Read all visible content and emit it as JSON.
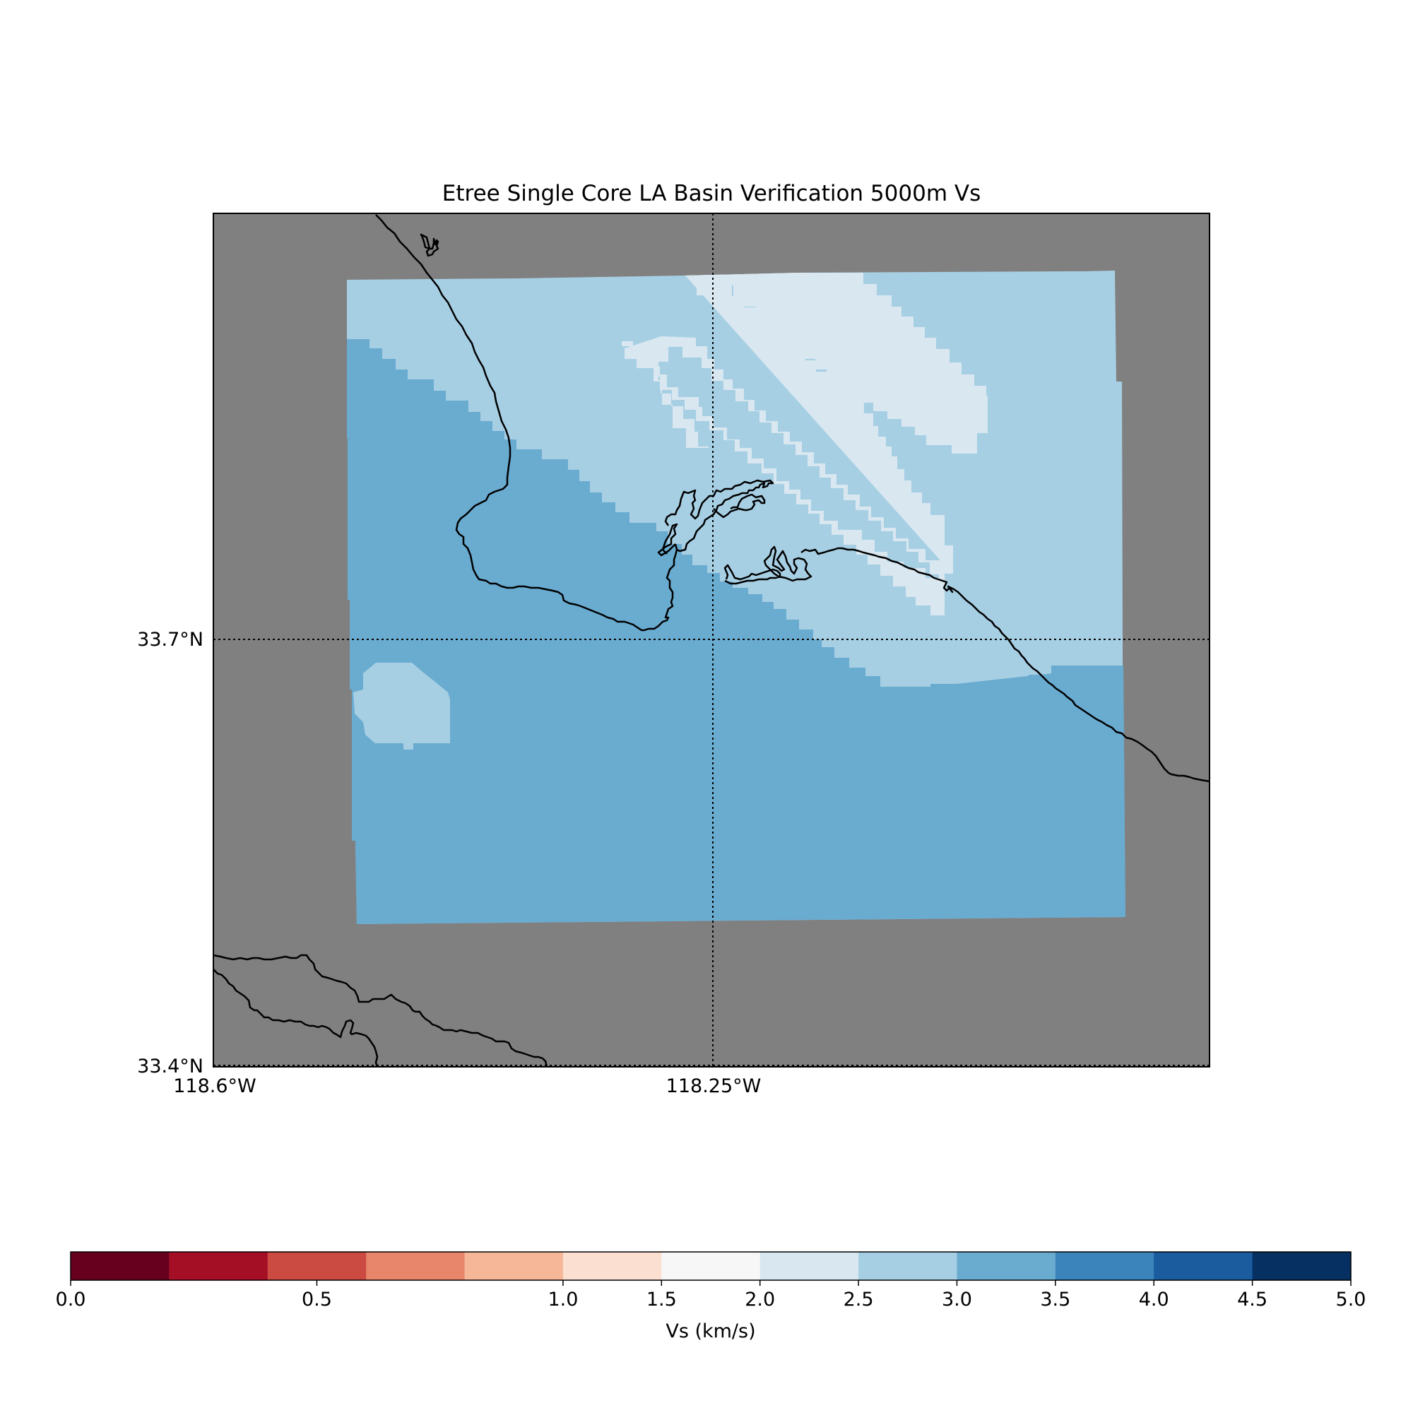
{
  "title": "Etree Single Core LA Basin Verification 5000m Vs",
  "map": {
    "background_color": "#808080",
    "coastline_color": "#000000",
    "lat_labels": [
      "33.7°N",
      "33.4°N"
    ],
    "lon_labels": [
      "118.6°W",
      "118.25°W"
    ],
    "gridlines": "dotted, 118.25°W and 33.7°N",
    "extent": {
      "lon": [
        -118.6,
        -117.9
      ],
      "lat": [
        33.4,
        34.0
      ]
    }
  },
  "chart_data": {
    "type": "heatmap",
    "title": "Etree Single Core LA Basin Verification 5000m Vs",
    "zones": [
      {
        "zone": "offshore south-west",
        "vs_range": [
          3.0,
          3.5
        ],
        "color": "#6aabd0"
      },
      {
        "zone": "north-west band",
        "vs_range": [
          2.5,
          3.0
        ],
        "color": "#a7cfe4"
      },
      {
        "zone": "central north-west trending band",
        "vs_range": [
          2.0,
          2.5
        ],
        "color": "#d8e7f0"
      },
      {
        "zone": "small offshore patch west",
        "vs_range": [
          2.5,
          3.0
        ],
        "color": "#a7cfe4"
      },
      {
        "zone": "south-east corner",
        "vs_range": [
          3.0,
          3.5
        ],
        "color": "#6aabd0"
      }
    ],
    "colorbar": {
      "label": "Vs (km/s)",
      "ticks": [
        "0.0",
        "0.5",
        "1.0",
        "1.5",
        "2.0",
        "2.5",
        "3.0",
        "3.5",
        "4.0",
        "4.5",
        "5.0"
      ],
      "bins": [
        {
          "from": 0.0,
          "to": 0.2,
          "color": "#67001f"
        },
        {
          "from": 0.2,
          "to": 0.4,
          "color": "#a50f26"
        },
        {
          "from": 0.4,
          "to": 0.6,
          "color": "#cb4a42"
        },
        {
          "from": 0.6,
          "to": 0.8,
          "color": "#e7866b"
        },
        {
          "from": 0.8,
          "to": 1.0,
          "color": "#f6b798"
        },
        {
          "from": 1.0,
          "to": 1.5,
          "color": "#fbe0d1"
        },
        {
          "from": 1.5,
          "to": 2.0,
          "color": "#f7f7f7"
        },
        {
          "from": 2.0,
          "to": 2.5,
          "color": "#d8e7f0"
        },
        {
          "from": 2.5,
          "to": 3.0,
          "color": "#a7cfe4"
        },
        {
          "from": 3.0,
          "to": 3.5,
          "color": "#6aabd0"
        },
        {
          "from": 3.5,
          "to": 4.0,
          "color": "#3a84bb"
        },
        {
          "from": 4.0,
          "to": 4.5,
          "color": "#1b5c9f"
        },
        {
          "from": 4.5,
          "to": 5.0,
          "color": "#053061"
        }
      ]
    }
  }
}
